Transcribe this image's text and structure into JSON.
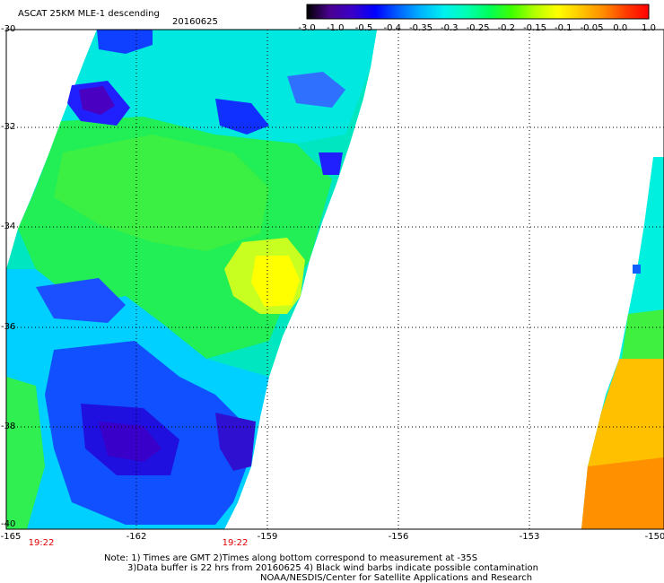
{
  "header": {
    "title": "ASCAT 25KM MLE-1 descending",
    "date": "20160625"
  },
  "colorbar": {
    "labels": [
      "-3.0",
      "-1.0",
      "-0.5",
      "-0.4",
      "-0.35",
      "-0.3",
      "-0.25",
      "-0.2",
      "-0.15",
      "-0.1",
      "-0.05",
      "0.0",
      "1.0"
    ],
    "stops": [
      "#000000",
      "#4a0090",
      "#3a00c8",
      "#0000ff",
      "#0060ff",
      "#00b4ff",
      "#00f0f0",
      "#00ffb4",
      "#00ff5a",
      "#40ff00",
      "#b4ff00",
      "#ffff00",
      "#ffc800",
      "#ff8c00",
      "#ff3c00",
      "#ff0000"
    ]
  },
  "axes": {
    "lat_labels": [
      "-30",
      "-32",
      "-34",
      "-36",
      "-38",
      "-40"
    ],
    "lon_labels": [
      "-165",
      "-162",
      "-159",
      "-156",
      "-153",
      "-150"
    ],
    "lat_range": [
      -40,
      -30
    ],
    "lon_range": [
      -165,
      -150
    ]
  },
  "times": [
    "19:22",
    "19:22"
  ],
  "notes": [
    "Note: 1) Times are GMT 2)Times along bottom correspond to measurement at -35S",
    "3)Data buffer is 22 hrs from 20160625 4) Black wind barbs indicate possible contamination",
    "NOAA/NESDIS/Center for Satellite Applications and Research"
  ]
}
